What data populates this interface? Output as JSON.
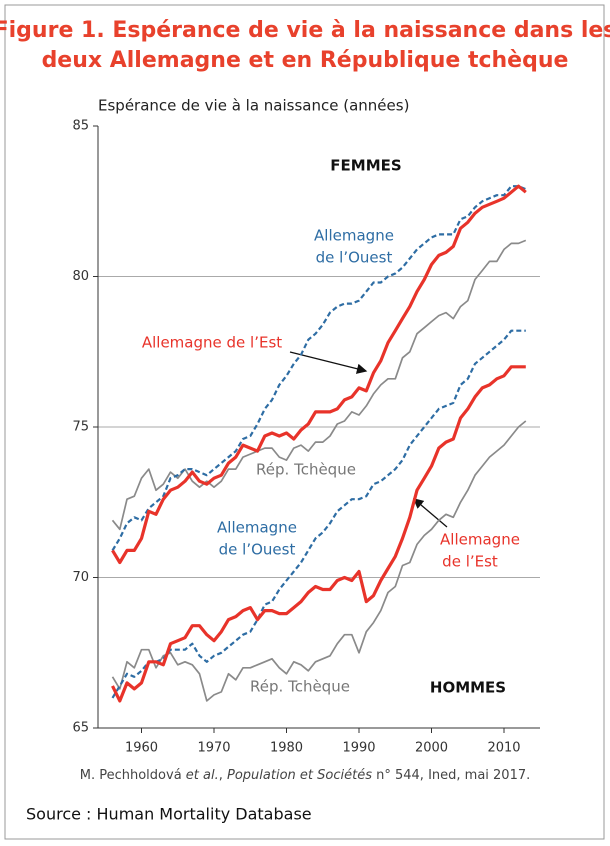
{
  "chart_data": {
    "type": "line",
    "title": [
      "Figure 1. Espérance de vie à la naissance dans les",
      "deux Allemagne et en République tchèque"
    ],
    "y_label": "Espérance de vie à la naissance (années)",
    "caption": [
      "M. Pechholdová ",
      "et al.",
      ", ",
      "Population et Sociétés",
      " n° 544, Ined, mai 2017."
    ],
    "source": "Source : Human Mortality Database",
    "annotations": [
      "FEMMES",
      "HOMMES",
      "Allemagne",
      "de l’Ouest",
      "Allemagne de l’Est",
      "Rép. Tchèque",
      "Allemagne",
      "de l’Ouest",
      "Allemagne",
      "de l’Est",
      "Rép. Tchèque"
    ],
    "xlim": [
      1954,
      2014
    ],
    "xticks": [
      1960,
      1970,
      1980,
      1990,
      2000,
      2010
    ],
    "ylim": [
      65,
      85
    ],
    "yticks": [
      65,
      70,
      75,
      80,
      85
    ],
    "grid": true,
    "x": [
      1956,
      1957,
      1958,
      1959,
      1960,
      1961,
      1962,
      1963,
      1964,
      1965,
      1966,
      1967,
      1968,
      1969,
      1970,
      1971,
      1972,
      1973,
      1974,
      1975,
      1976,
      1977,
      1978,
      1979,
      1980,
      1981,
      1982,
      1983,
      1984,
      1985,
      1986,
      1987,
      1988,
      1989,
      1990,
      1991,
      1992,
      1993,
      1994,
      1995,
      1996,
      1997,
      1998,
      1999,
      2000,
      2001,
      2002,
      2003,
      2004,
      2005,
      2006,
      2007,
      2008,
      2009,
      2010,
      2011,
      2012,
      2013
    ],
    "series": [
      {
        "color": "#2e6da4",
        "dashed": true,
        "values": [
          70.9,
          71.3,
          71.8,
          72.0,
          71.9,
          72.3,
          72.5,
          72.7,
          73.3,
          73.4,
          73.6,
          73.6,
          73.5,
          73.4,
          73.6,
          73.8,
          74.0,
          74.2,
          74.6,
          74.7,
          75.1,
          75.6,
          75.9,
          76.4,
          76.7,
          77.1,
          77.4,
          77.9,
          78.1,
          78.4,
          78.8,
          79.0,
          79.1,
          79.1,
          79.2,
          79.5,
          79.8,
          79.8,
          80.0,
          80.1,
          80.3,
          80.6,
          80.9,
          81.1,
          81.3,
          81.4,
          81.4,
          81.4,
          81.9,
          82.0,
          82.3,
          82.5,
          82.6,
          82.7,
          82.7,
          83.0,
          83.0,
          82.9
        ]
      },
      {
        "color": "#e8332a",
        "dashed": false,
        "values": [
          70.9,
          70.5,
          70.9,
          70.9,
          71.3,
          72.2,
          72.1,
          72.6,
          72.9,
          73.0,
          73.2,
          73.5,
          73.2,
          73.1,
          73.3,
          73.4,
          73.8,
          74.0,
          74.4,
          74.3,
          74.2,
          74.7,
          74.8,
          74.7,
          74.8,
          74.6,
          74.9,
          75.1,
          75.5,
          75.5,
          75.5,
          75.6,
          75.9,
          76.0,
          76.3,
          76.2,
          76.8,
          77.2,
          77.8,
          78.2,
          78.6,
          79.0,
          79.5,
          79.9,
          80.4,
          80.7,
          80.8,
          81.0,
          81.6,
          81.8,
          82.1,
          82.3,
          82.4,
          82.5,
          82.6,
          82.8,
          83.0,
          82.8
        ]
      },
      {
        "color": "#8a8a8a",
        "dashed": false,
        "values": [
          71.9,
          71.6,
          72.6,
          72.7,
          73.3,
          73.6,
          72.9,
          73.1,
          73.5,
          73.3,
          73.6,
          73.2,
          73.0,
          73.2,
          73.0,
          73.2,
          73.6,
          73.6,
          74.0,
          74.1,
          74.2,
          74.3,
          74.3,
          74.0,
          73.9,
          74.3,
          74.4,
          74.2,
          74.5,
          74.5,
          74.7,
          75.1,
          75.2,
          75.5,
          75.4,
          75.7,
          76.1,
          76.4,
          76.6,
          76.6,
          77.3,
          77.5,
          78.1,
          78.3,
          78.5,
          78.7,
          78.8,
          78.6,
          79.0,
          79.2,
          79.9,
          80.2,
          80.5,
          80.5,
          80.9,
          81.1,
          81.1,
          81.2
        ]
      },
      {
        "color": "#2e6da4",
        "dashed": true,
        "values": [
          66.0,
          66.4,
          66.8,
          66.7,
          66.9,
          67.2,
          67.2,
          67.3,
          67.6,
          67.6,
          67.6,
          67.8,
          67.4,
          67.2,
          67.4,
          67.5,
          67.7,
          67.9,
          68.1,
          68.2,
          68.6,
          69.1,
          69.2,
          69.6,
          69.9,
          70.2,
          70.5,
          70.9,
          71.3,
          71.5,
          71.8,
          72.2,
          72.4,
          72.6,
          72.6,
          72.7,
          73.1,
          73.2,
          73.4,
          73.6,
          73.9,
          74.4,
          74.7,
          75.0,
          75.3,
          75.6,
          75.7,
          75.8,
          76.4,
          76.6,
          77.1,
          77.3,
          77.5,
          77.7,
          77.9,
          78.2,
          78.2,
          78.2
        ]
      },
      {
        "color": "#e8332a",
        "dashed": false,
        "values": [
          66.4,
          65.9,
          66.5,
          66.3,
          66.5,
          67.2,
          67.2,
          67.1,
          67.8,
          67.9,
          68.0,
          68.4,
          68.4,
          68.1,
          67.9,
          68.2,
          68.6,
          68.7,
          68.9,
          69.0,
          68.6,
          68.9,
          68.9,
          68.8,
          68.8,
          69.0,
          69.2,
          69.5,
          69.7,
          69.6,
          69.6,
          69.9,
          70.0,
          69.9,
          70.2,
          69.2,
          69.4,
          69.9,
          70.3,
          70.7,
          71.3,
          72.0,
          72.9,
          73.3,
          73.7,
          74.3,
          74.5,
          74.6,
          75.3,
          75.6,
          76.0,
          76.3,
          76.4,
          76.6,
          76.7,
          77.0,
          77.0,
          77.0
        ]
      },
      {
        "color": "#8a8a8a",
        "dashed": false,
        "values": [
          66.7,
          66.3,
          67.2,
          67.0,
          67.6,
          67.6,
          67.0,
          67.4,
          67.5,
          67.1,
          67.2,
          67.1,
          66.8,
          65.9,
          66.1,
          66.2,
          66.8,
          66.6,
          67.0,
          67.0,
          67.1,
          67.2,
          67.3,
          67.0,
          66.8,
          67.2,
          67.1,
          66.9,
          67.2,
          67.3,
          67.4,
          67.8,
          68.1,
          68.1,
          67.5,
          68.2,
          68.5,
          68.9,
          69.5,
          69.7,
          70.4,
          70.5,
          71.1,
          71.4,
          71.6,
          71.9,
          72.1,
          72.0,
          72.5,
          72.9,
          73.4,
          73.7,
          74.0,
          74.2,
          74.4,
          74.7,
          75.0,
          75.2
        ]
      }
    ]
  }
}
